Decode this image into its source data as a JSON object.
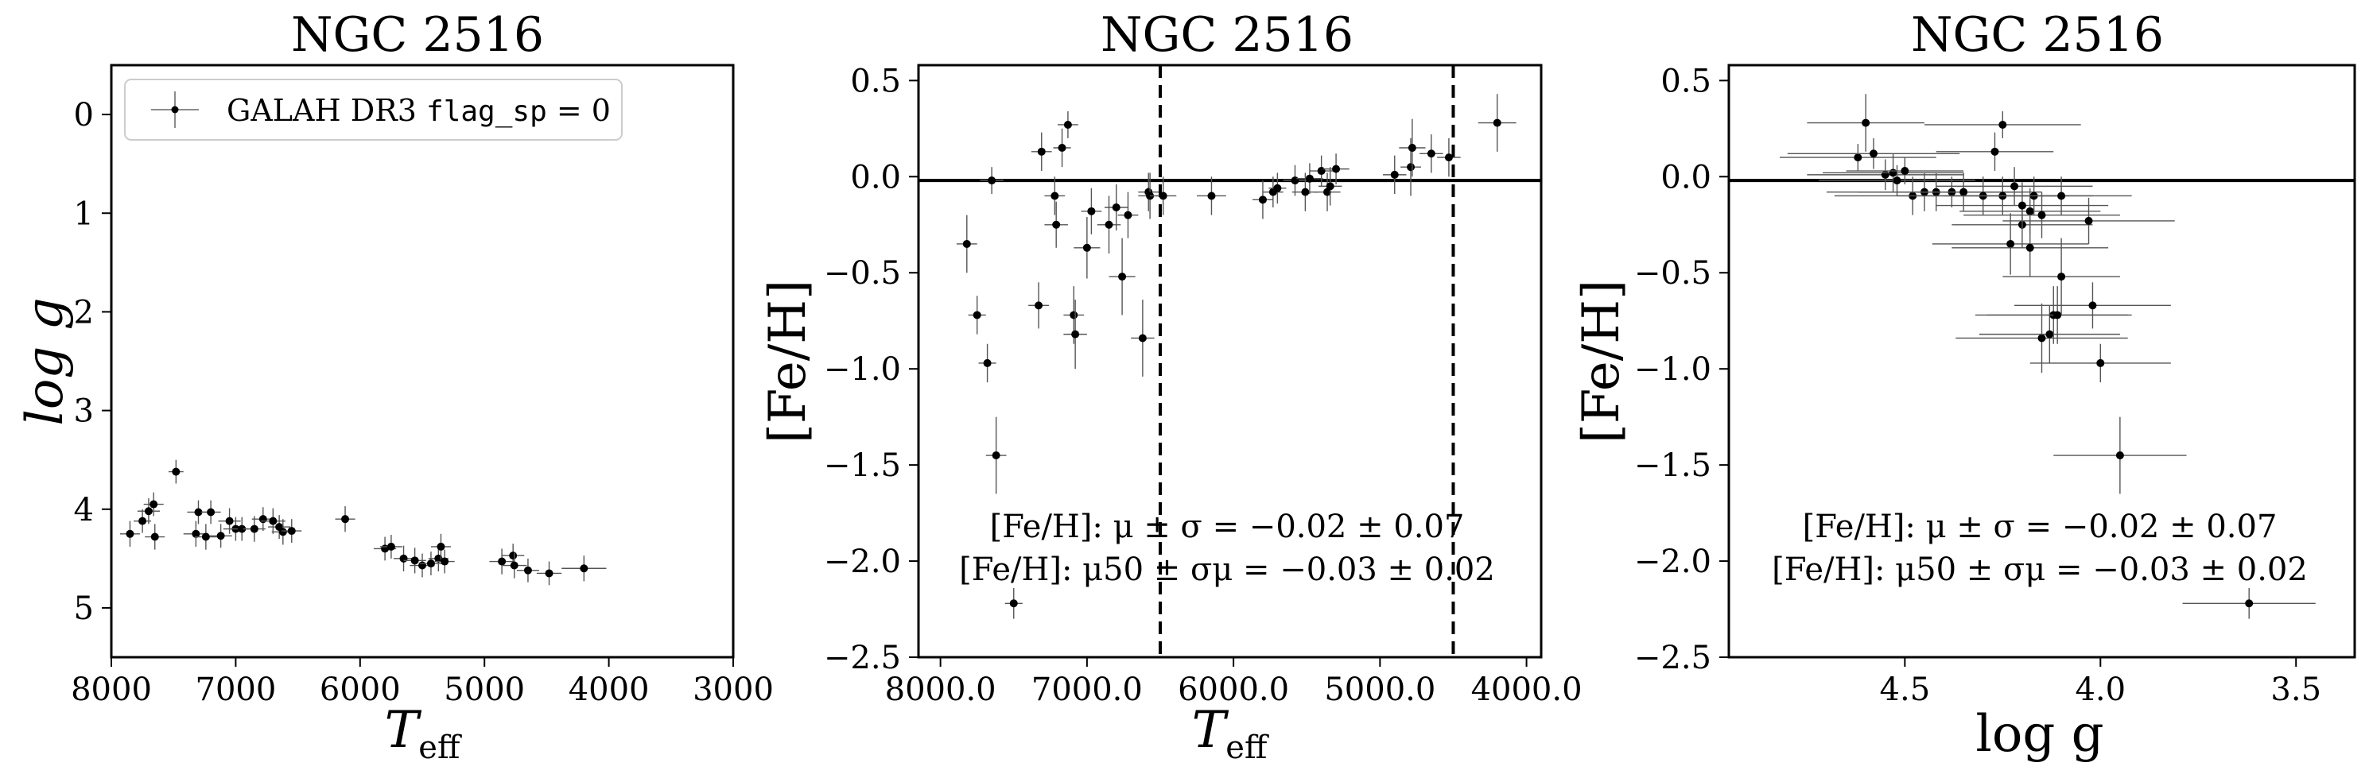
{
  "chart_data": [
    {
      "type": "scatter",
      "title": "NGC 2516",
      "xlabel": "T",
      "xlabel_sub": "eff",
      "ylabel": "log g",
      "xlim": [
        8000,
        3000
      ],
      "ylim": [
        5.5,
        -0.5
      ],
      "xticks": [
        8000,
        7000,
        6000,
        5000,
        4000,
        3000
      ],
      "yticks": [
        0,
        1,
        2,
        3,
        4,
        5
      ],
      "legend": {
        "placement": "top-left",
        "label_text": "GALAH DR3 ",
        "label_code": "flag_sp",
        "label_suffix": " = 0"
      },
      "series": [
        {
          "name": "GALAH DR3 flag_sp = 0",
          "points": [
            [
              7850,
              4.25,
              80,
              0.13
            ],
            [
              7750,
              4.12,
              70,
              0.12
            ],
            [
              7700,
              4.02,
              90,
              0.13
            ],
            [
              7660,
              3.95,
              80,
              0.12
            ],
            [
              7650,
              4.28,
              80,
              0.13
            ],
            [
              7480,
              3.62,
              60,
              0.12
            ],
            [
              7320,
              4.25,
              100,
              0.13
            ],
            [
              7300,
              4.03,
              90,
              0.12
            ],
            [
              7240,
              4.28,
              90,
              0.13
            ],
            [
              7200,
              4.03,
              80,
              0.12
            ],
            [
              7120,
              4.27,
              90,
              0.12
            ],
            [
              7050,
              4.12,
              90,
              0.13
            ],
            [
              7000,
              4.2,
              100,
              0.12
            ],
            [
              6950,
              4.2,
              100,
              0.12
            ],
            [
              6850,
              4.2,
              90,
              0.13
            ],
            [
              6780,
              4.1,
              90,
              0.12
            ],
            [
              6700,
              4.12,
              100,
              0.13
            ],
            [
              6650,
              4.18,
              90,
              0.12
            ],
            [
              6620,
              4.23,
              90,
              0.13
            ],
            [
              6550,
              4.22,
              80,
              0.12
            ],
            [
              6120,
              4.1,
              80,
              0.13
            ],
            [
              5800,
              4.4,
              90,
              0.12
            ],
            [
              5750,
              4.38,
              90,
              0.12
            ],
            [
              5650,
              4.5,
              80,
              0.13
            ],
            [
              5560,
              4.52,
              90,
              0.13
            ],
            [
              5500,
              4.57,
              100,
              0.12
            ],
            [
              5430,
              4.55,
              90,
              0.12
            ],
            [
              5370,
              4.5,
              80,
              0.13
            ],
            [
              5350,
              4.38,
              80,
              0.13
            ],
            [
              5320,
              4.53,
              80,
              0.12
            ],
            [
              4860,
              4.53,
              100,
              0.13
            ],
            [
              4770,
              4.47,
              90,
              0.12
            ],
            [
              4760,
              4.57,
              100,
              0.13
            ],
            [
              4650,
              4.62,
              90,
              0.12
            ],
            [
              4480,
              4.65,
              100,
              0.12
            ],
            [
              4200,
              4.6,
              180,
              0.13
            ]
          ]
        }
      ]
    },
    {
      "type": "scatter",
      "title": "NGC 2516",
      "xlabel": "T",
      "xlabel_sub": "eff",
      "ylabel": "[Fe/H]",
      "xlim": [
        8150,
        3900
      ],
      "ylim": [
        -2.5,
        0.58
      ],
      "xticks": [
        8000,
        7000,
        6000,
        5000,
        4000
      ],
      "yticks": [
        0.5,
        0.0,
        -0.5,
        -1.0,
        -1.5,
        -2.0,
        -2.5
      ],
      "hline": -0.02,
      "vlines": [
        6500,
        4500
      ],
      "annotations": [
        "[Fe/H]: μ ± σ = −0.02 ± 0.07",
        "[Fe/H]: μ50 ± σμ = −0.03 ± 0.02"
      ],
      "series": [
        {
          "name": "",
          "points": [
            [
              7820,
              -0.35,
              70,
              0.15
            ],
            [
              7750,
              -0.72,
              60,
              0.1
            ],
            [
              7680,
              -0.97,
              60,
              0.1
            ],
            [
              7650,
              -0.02,
              80,
              0.07
            ],
            [
              7620,
              -1.45,
              70,
              0.2
            ],
            [
              7500,
              -2.22,
              60,
              0.08
            ],
            [
              7330,
              -0.67,
              70,
              0.12
            ],
            [
              7310,
              0.13,
              70,
              0.1
            ],
            [
              7220,
              -0.1,
              70,
              0.1
            ],
            [
              7210,
              -0.25,
              80,
              0.12
            ],
            [
              7170,
              0.15,
              60,
              0.1
            ],
            [
              7130,
              0.27,
              70,
              0.07
            ],
            [
              7090,
              -0.72,
              70,
              0.15
            ],
            [
              7080,
              -0.82,
              80,
              0.18
            ],
            [
              7000,
              -0.37,
              90,
              0.16
            ],
            [
              6970,
              -0.18,
              70,
              0.12
            ],
            [
              6850,
              -0.25,
              80,
              0.15
            ],
            [
              6800,
              -0.16,
              80,
              0.12
            ],
            [
              6760,
              -0.52,
              90,
              0.2
            ],
            [
              6720,
              -0.2,
              70,
              0.12
            ],
            [
              6620,
              -0.84,
              80,
              0.2
            ],
            [
              6580,
              -0.08,
              70,
              0.1
            ],
            [
              6570,
              -0.1,
              80,
              0.12
            ],
            [
              6480,
              -0.1,
              90,
              0.1
            ],
            [
              6150,
              -0.1,
              100,
              0.1
            ],
            [
              5800,
              -0.12,
              70,
              0.1
            ],
            [
              5730,
              -0.08,
              70,
              0.08
            ],
            [
              5700,
              -0.06,
              60,
              0.08
            ],
            [
              5580,
              -0.02,
              80,
              0.08
            ],
            [
              5510,
              -0.08,
              90,
              0.1
            ],
            [
              5480,
              -0.01,
              90,
              0.08
            ],
            [
              5400,
              0.03,
              80,
              0.08
            ],
            [
              5360,
              -0.08,
              90,
              0.1
            ],
            [
              5340,
              -0.05,
              80,
              0.1
            ],
            [
              5300,
              0.04,
              90,
              0.08
            ],
            [
              4900,
              0.01,
              80,
              0.1
            ],
            [
              4790,
              0.05,
              70,
              0.15
            ],
            [
              4780,
              0.15,
              90,
              0.15
            ],
            [
              4650,
              0.12,
              80,
              0.1
            ],
            [
              4530,
              0.1,
              80,
              0.1
            ],
            [
              4200,
              0.28,
              130,
              0.15
            ]
          ]
        }
      ]
    },
    {
      "type": "scatter",
      "title": "NGC 2516",
      "xlabel": "log g",
      "ylabel": "[Fe/H]",
      "xlim": [
        4.95,
        3.35
      ],
      "ylim": [
        -2.5,
        0.58
      ],
      "xticks": [
        4.5,
        4.0,
        3.5
      ],
      "yticks": [
        0.5,
        0.0,
        -0.5,
        -1.0,
        -1.5,
        -2.0,
        -2.5
      ],
      "hline": -0.02,
      "annotations": [
        "[Fe/H]: μ ± σ = −0.02 ± 0.07",
        "[Fe/H]: μ50 ± σμ = −0.03 ± 0.02"
      ],
      "series": [
        {
          "name": "",
          "points": [
            [
              4.62,
              0.1,
              0.2,
              0.07
            ],
            [
              4.6,
              0.28,
              0.15,
              0.15
            ],
            [
              4.58,
              0.12,
              0.22,
              0.08
            ],
            [
              4.55,
              0.01,
              0.2,
              0.08
            ],
            [
              4.53,
              0.02,
              0.18,
              0.1
            ],
            [
              4.52,
              -0.02,
              0.2,
              0.08
            ],
            [
              4.5,
              0.03,
              0.15,
              0.07
            ],
            [
              4.48,
              -0.1,
              0.2,
              0.1
            ],
            [
              4.45,
              -0.08,
              0.25,
              0.1
            ],
            [
              4.42,
              -0.08,
              0.2,
              0.1
            ],
            [
              4.38,
              -0.08,
              0.18,
              0.08
            ],
            [
              4.35,
              -0.08,
              0.2,
              0.1
            ],
            [
              4.3,
              -0.1,
              0.22,
              0.1
            ],
            [
              4.27,
              0.13,
              0.15,
              0.1
            ],
            [
              4.25,
              0.27,
              0.2,
              0.07
            ],
            [
              4.25,
              -0.1,
              0.15,
              0.1
            ],
            [
              4.23,
              -0.35,
              0.2,
              0.16
            ],
            [
              4.22,
              -0.05,
              0.2,
              0.1
            ],
            [
              4.2,
              -0.25,
              0.18,
              0.12
            ],
            [
              4.2,
              -0.15,
              0.22,
              0.12
            ],
            [
              4.18,
              -0.18,
              0.18,
              0.12
            ],
            [
              4.18,
              -0.37,
              0.2,
              0.15
            ],
            [
              4.17,
              -0.1,
              0.15,
              0.1
            ],
            [
              4.15,
              -0.84,
              0.22,
              0.18
            ],
            [
              4.15,
              -0.2,
              0.2,
              0.12
            ],
            [
              4.13,
              -0.82,
              0.18,
              0.15
            ],
            [
              4.12,
              -0.72,
              0.2,
              0.15
            ],
            [
              4.11,
              -0.72,
              0.18,
              0.15
            ],
            [
              4.1,
              -0.52,
              0.15,
              0.2
            ],
            [
              4.1,
              -0.1,
              0.18,
              0.1
            ],
            [
              4.03,
              -0.23,
              0.22,
              0.12
            ],
            [
              4.02,
              -0.67,
              0.2,
              0.12
            ],
            [
              4.0,
              -0.97,
              0.18,
              0.1
            ],
            [
              3.95,
              -1.45,
              0.17,
              0.2
            ],
            [
              3.62,
              -2.22,
              0.17,
              0.08
            ]
          ]
        }
      ]
    }
  ]
}
